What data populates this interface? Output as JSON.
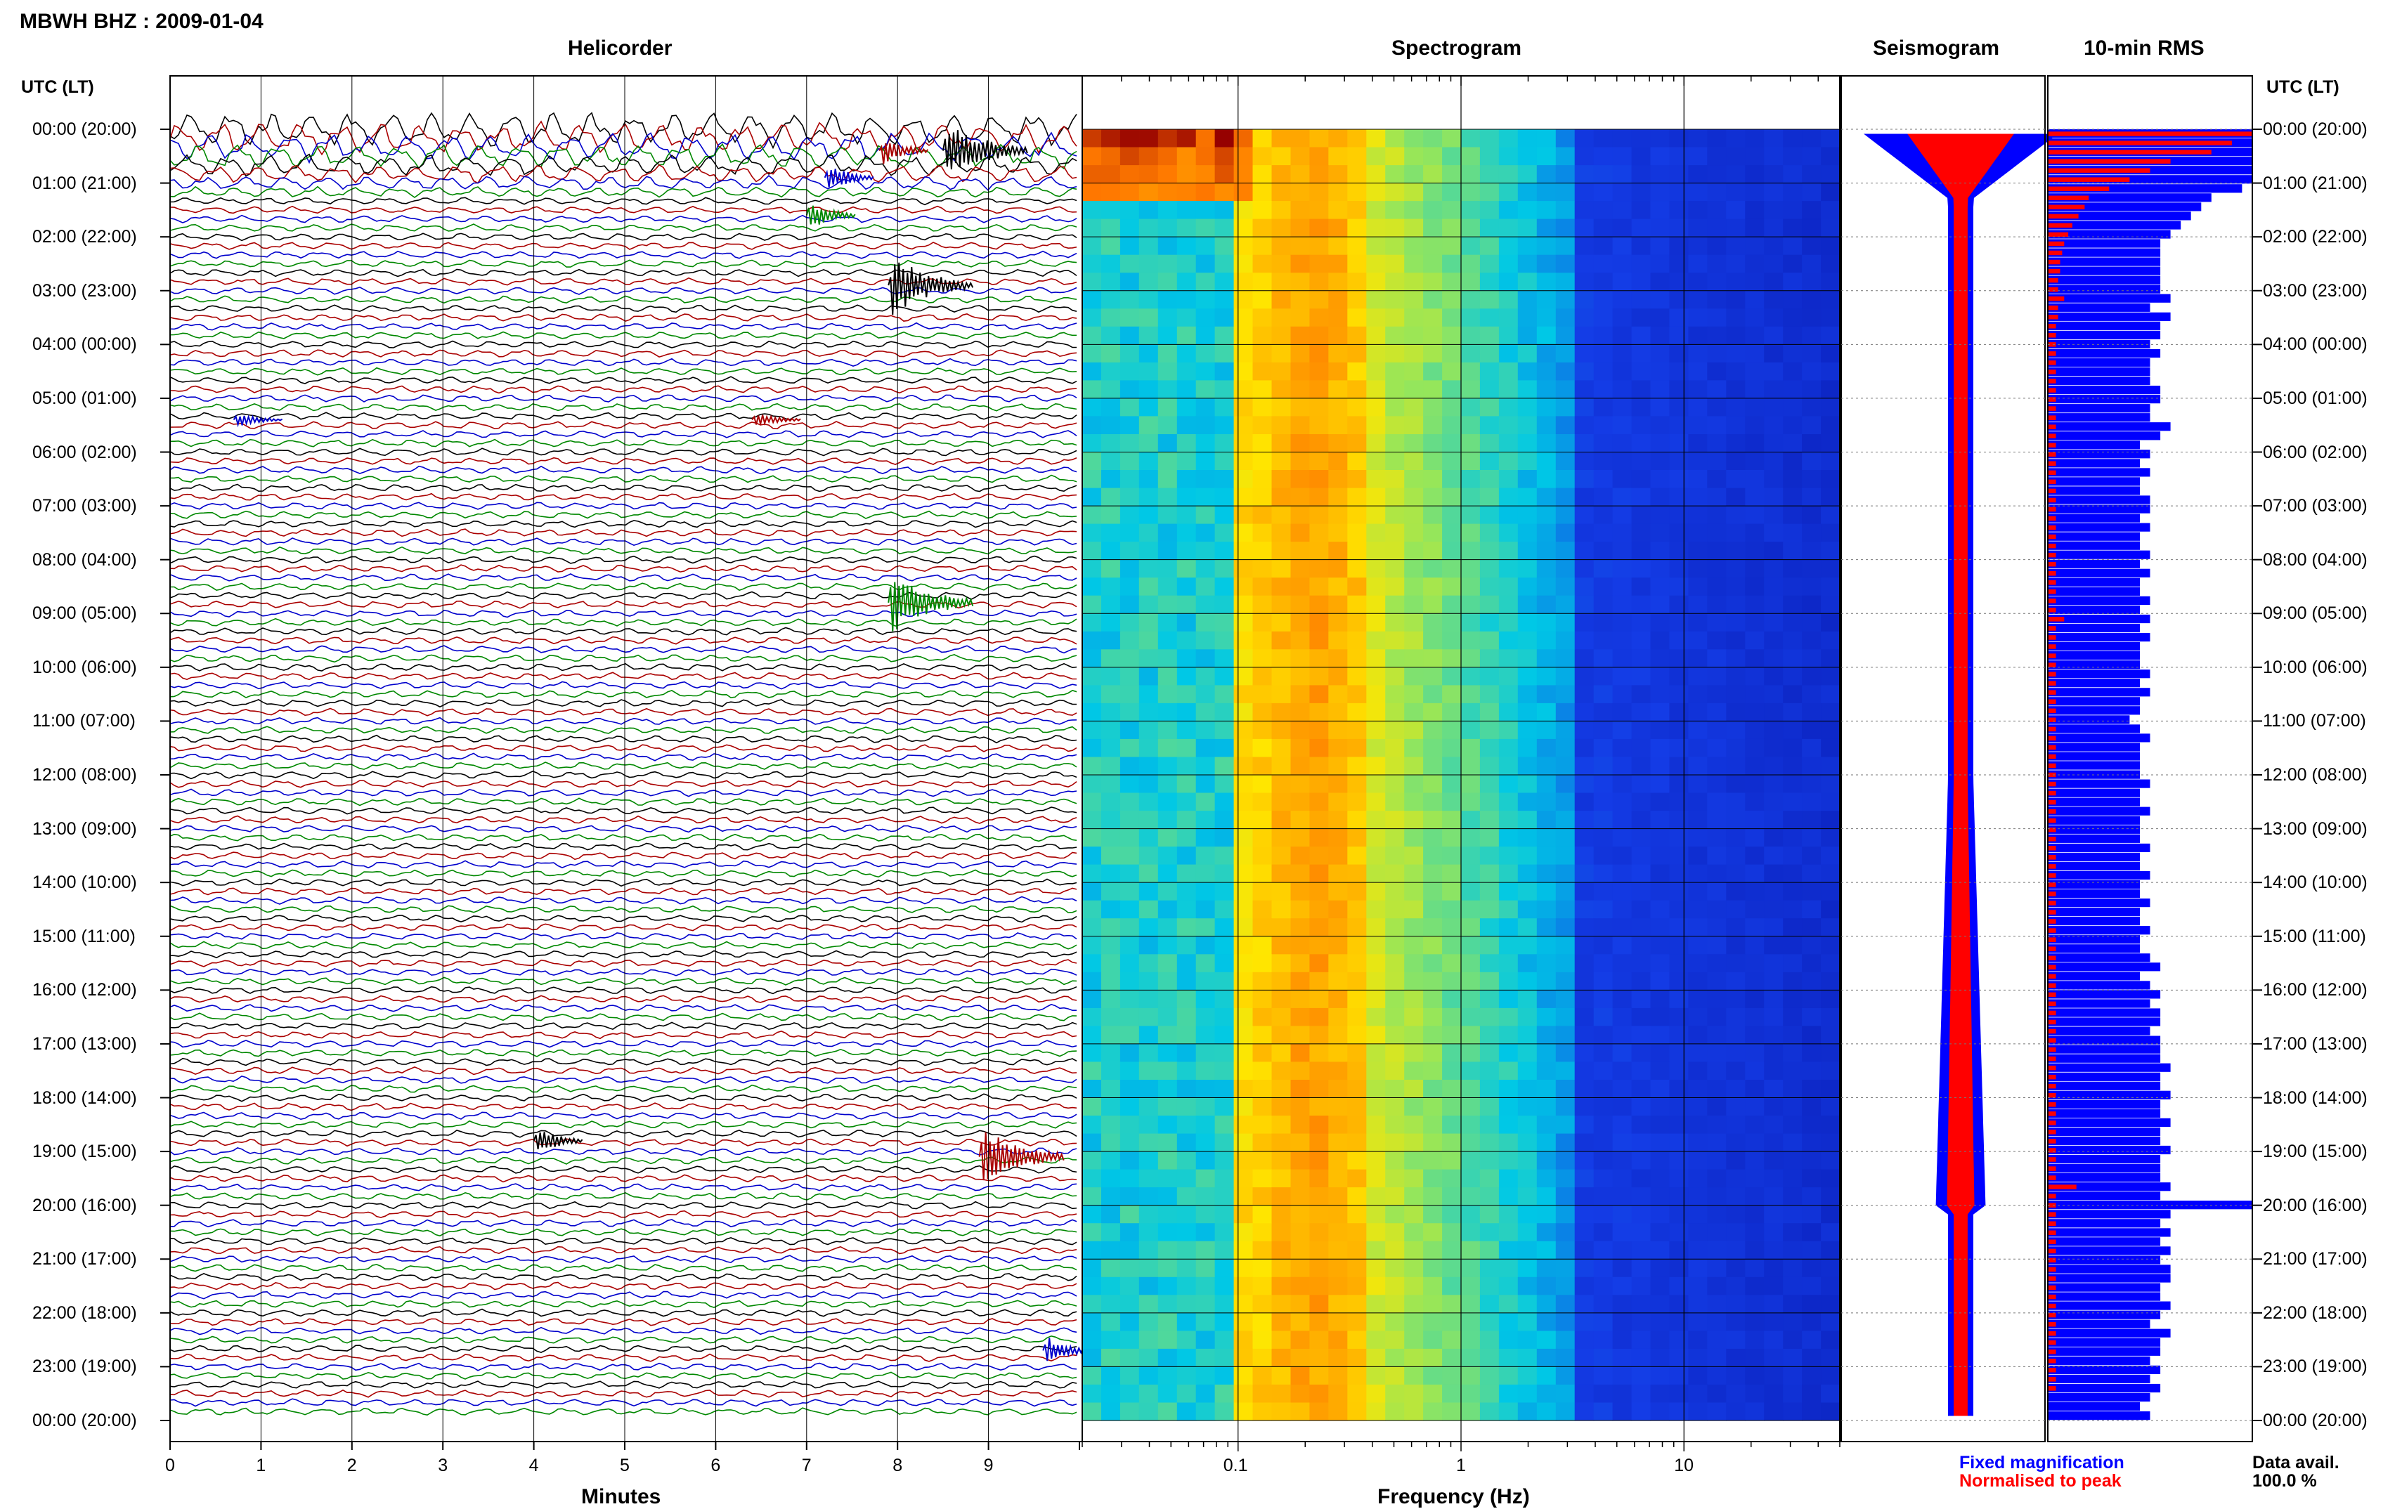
{
  "header": {
    "title": "MBWH BHZ : 2009-01-04"
  },
  "panels": {
    "helicorder": "Helicorder",
    "spectrogram": "Spectrogram",
    "seismogram": "Seismogram",
    "rms": "10-min RMS"
  },
  "time_axis": {
    "left_header": "UTC (LT)",
    "right_header": "UTC (LT)",
    "labels": [
      "00:00 (20:00)",
      "01:00 (21:00)",
      "02:00 (22:00)",
      "03:00 (23:00)",
      "04:00 (00:00)",
      "05:00 (01:00)",
      "06:00 (02:00)",
      "07:00 (03:00)",
      "08:00 (04:00)",
      "09:00 (05:00)",
      "10:00 (06:00)",
      "11:00 (07:00)",
      "12:00 (08:00)",
      "13:00 (09:00)",
      "14:00 (10:00)",
      "15:00 (11:00)",
      "16:00 (12:00)",
      "17:00 (13:00)",
      "18:00 (14:00)",
      "19:00 (15:00)",
      "20:00 (16:00)",
      "21:00 (17:00)",
      "22:00 (18:00)",
      "23:00 (19:00)",
      "00:00 (20:00)"
    ]
  },
  "axes": {
    "minutes": {
      "label": "Minutes",
      "ticks": [
        "0",
        "1",
        "2",
        "3",
        "4",
        "5",
        "6",
        "7",
        "8",
        "9"
      ]
    },
    "frequency": {
      "label": "Frequency (Hz)",
      "ticks": [
        "0.1",
        "1",
        "10"
      ]
    }
  },
  "legend": {
    "fixed": "Fixed magnification",
    "normalised": "Normalised to peak",
    "fixed_color": "#0000ff",
    "normalised_color": "#ff0000"
  },
  "data_avail": {
    "label": "Data avail.",
    "value": "100.0 %"
  },
  "colors": {
    "trace_cycle": [
      "#000000",
      "#aa0000",
      "#0000cc",
      "#008800"
    ],
    "rms_fixed": "#0000ff",
    "rms_norm": "#ff0000"
  },
  "chart_data": {
    "type": "heatmap",
    "helicorder": {
      "x_unit": "minutes",
      "xlim": [
        0,
        10
      ],
      "events": [
        {
          "hour": 0.4,
          "minute": 8.5,
          "amp": "large"
        },
        {
          "hour": 0.4,
          "minute": 7.8,
          "amp": "medium"
        },
        {
          "hour": 0.9,
          "minute": 7.2,
          "amp": "medium"
        },
        {
          "hour": 1.6,
          "minute": 7.0,
          "amp": "medium"
        },
        {
          "hour": 2.9,
          "minute": 7.9,
          "amp": "large"
        },
        {
          "hour": 5.4,
          "minute": 6.4,
          "amp": "small"
        },
        {
          "hour": 5.4,
          "minute": 0.7,
          "amp": "small"
        },
        {
          "hour": 8.8,
          "minute": 7.9,
          "amp": "large"
        },
        {
          "hour": 18.8,
          "minute": 4.0,
          "amp": "medium"
        },
        {
          "hour": 19.1,
          "minute": 8.9,
          "amp": "large"
        },
        {
          "hour": 22.7,
          "minute": 9.6,
          "amp": "medium"
        }
      ]
    },
    "spectrogram": {
      "x_unit": "Hz",
      "x_scale": "log",
      "xlim": [
        0.02,
        50
      ],
      "peak_band_hz": [
        0.15,
        0.3
      ],
      "noise_floor_from_hz": 3
    },
    "rms_10min": {
      "fixed": [
        1.0,
        1.0,
        1.0,
        1.0,
        1.0,
        1.0,
        0.95,
        0.8,
        0.75,
        0.7,
        0.65,
        0.6,
        0.55,
        0.55,
        0.55,
        0.55,
        0.55,
        0.55,
        0.6,
        0.5,
        0.6,
        0.55,
        0.55,
        0.5,
        0.55,
        0.5,
        0.5,
        0.5,
        0.55,
        0.55,
        0.5,
        0.5,
        0.6,
        0.55,
        0.45,
        0.5,
        0.45,
        0.5,
        0.45,
        0.45,
        0.5,
        0.5,
        0.45,
        0.5,
        0.45,
        0.45,
        0.5,
        0.45,
        0.5,
        0.45,
        0.45,
        0.5,
        0.45,
        0.5,
        0.45,
        0.5,
        0.45,
        0.45,
        0.45,
        0.5,
        0.45,
        0.5,
        0.45,
        0.45,
        0.4,
        0.45,
        0.5,
        0.45,
        0.45,
        0.45,
        0.45,
        0.5,
        0.45,
        0.45,
        0.5,
        0.45,
        0.45,
        0.45,
        0.5,
        0.45,
        0.45,
        0.5,
        0.45,
        0.45,
        0.5,
        0.45,
        0.45,
        0.5,
        0.45,
        0.45,
        0.5,
        0.55,
        0.45,
        0.5,
        0.55,
        0.5,
        0.55,
        0.55,
        0.5,
        0.55,
        0.55,
        0.55,
        0.6,
        0.55,
        0.55,
        0.6,
        0.55,
        0.55,
        0.6,
        0.55,
        0.55,
        0.6,
        0.55,
        0.55,
        0.55,
        0.6,
        0.55,
        1.0,
        0.6,
        0.55,
        0.6,
        0.55,
        0.6,
        0.55,
        0.6,
        0.6,
        0.55,
        0.55,
        0.6,
        0.55,
        0.5,
        0.6,
        0.55,
        0.55,
        0.5,
        0.55,
        0.5,
        0.55,
        0.5,
        0.45,
        0.5
      ],
      "norm": [
        1.0,
        0.9,
        0.8,
        0.6,
        0.5,
        0.4,
        0.3,
        0.2,
        0.18,
        0.15,
        0.12,
        0.1,
        0.08,
        0.07,
        0.06,
        0.06,
        0.05,
        0.05,
        0.08,
        0.05,
        0.05,
        0.04,
        0.04,
        0.04,
        0.04,
        0.04,
        0.04,
        0.04,
        0.04,
        0.04,
        0.04,
        0.04,
        0.04,
        0.04,
        0.04,
        0.04,
        0.04,
        0.04,
        0.04,
        0.04,
        0.04,
        0.04,
        0.04,
        0.04,
        0.04,
        0.04,
        0.04,
        0.04,
        0.04,
        0.04,
        0.04,
        0.04,
        0.04,
        0.08,
        0.04,
        0.04,
        0.04,
        0.04,
        0.04,
        0.04,
        0.04,
        0.04,
        0.04,
        0.04,
        0.04,
        0.04,
        0.04,
        0.04,
        0.04,
        0.04,
        0.04,
        0.04,
        0.04,
        0.04,
        0.04,
        0.04,
        0.04,
        0.04,
        0.04,
        0.04,
        0.04,
        0.04,
        0.04,
        0.04,
        0.04,
        0.04,
        0.04,
        0.04,
        0.04,
        0.04,
        0.04,
        0.04,
        0.04,
        0.04,
        0.04,
        0.04,
        0.04,
        0.04,
        0.04,
        0.04,
        0.04,
        0.04,
        0.04,
        0.04,
        0.04,
        0.04,
        0.04,
        0.04,
        0.04,
        0.04,
        0.04,
        0.04,
        0.04,
        0.04,
        0.04,
        0.14,
        0.04,
        0.04,
        0.04,
        0.04,
        0.04,
        0.04,
        0.04,
        0.04,
        0.04,
        0.04,
        0.04,
        0.04,
        0.04,
        0.04,
        0.04,
        0.04,
        0.04,
        0.04,
        0.04,
        0.04,
        0.04,
        0.04
      ]
    }
  }
}
